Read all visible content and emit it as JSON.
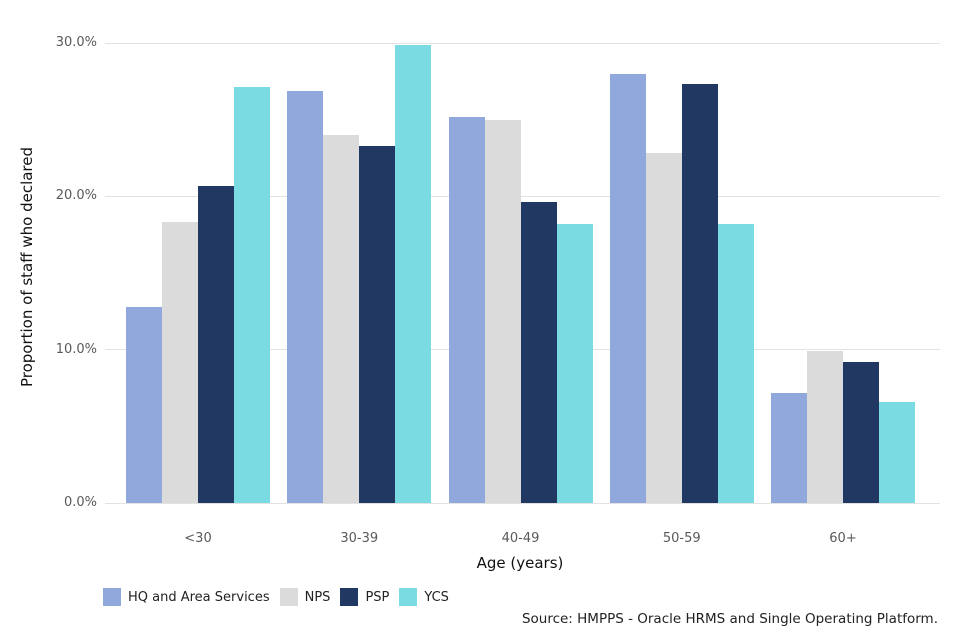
{
  "chart_data": {
    "type": "bar",
    "title": "",
    "xlabel": "Age (years)",
    "ylabel": "Proportion of staff who declared",
    "categories": [
      "<30",
      "30-39",
      "40-49",
      "50-59",
      "60+"
    ],
    "series": [
      {
        "name": "HQ and Area Services",
        "color": "#90A8DB",
        "values": [
          12.8,
          26.9,
          25.2,
          28.0,
          7.2
        ]
      },
      {
        "name": "NPS",
        "color": "#DBDBDB",
        "values": [
          18.3,
          24.0,
          25.0,
          22.8,
          9.9
        ]
      },
      {
        "name": "PSP",
        "color": "#213862",
        "values": [
          20.7,
          23.3,
          19.6,
          27.3,
          9.2
        ]
      },
      {
        "name": "YCS",
        "color": "#7BDBE2",
        "values": [
          27.1,
          29.9,
          18.2,
          18.2,
          6.6
        ]
      }
    ],
    "y_ticks": [
      "0.0%",
      "10.0%",
      "20.0%",
      "30.0%"
    ],
    "y_tick_values": [
      0,
      10,
      20,
      30
    ],
    "ylim": [
      0,
      30
    ],
    "grid": "horizontal",
    "legend_position": "bottom-left",
    "gridline_color": "#e2e2e2"
  },
  "source_note": "Source: HMPPS - Oracle HRMS and Single Operating Platform."
}
